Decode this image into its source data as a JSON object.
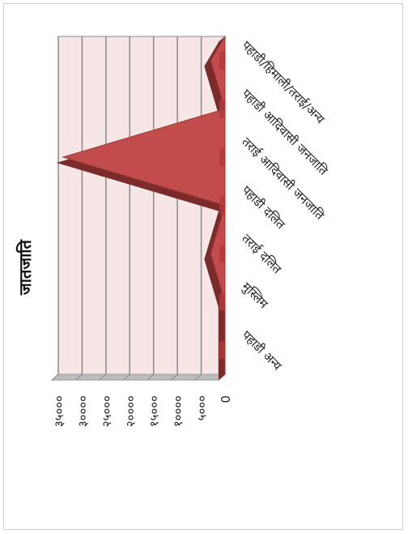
{
  "chart_data": {
    "type": "area",
    "title": "जातजाति",
    "categories": [
      "पहाडी/हिमाली/तराई/अन्य",
      "पहाडी आदिवासी जनजाति",
      "तराई आदिवासी जनजाति",
      "पहाडी दलित",
      "तराई दलित",
      "मुस्लिम",
      "पहाडी अन्य"
    ],
    "values": [
      3000,
      0,
      34000,
      0,
      3000,
      0,
      0
    ],
    "ylim": [
      0,
      35000
    ],
    "yticks": [
      "0",
      "५०००",
      "१००००",
      "१५०००",
      "२००००",
      "२५०००",
      "३००००",
      "३५०००"
    ],
    "grid": true,
    "colors": {
      "wall": "#f6e6e6",
      "grid": "#8a8a8a",
      "floor": "#bdbdbd",
      "area": "#c24b4b",
      "area_dark": "#7d2a2a",
      "marker": "#b03a3a"
    }
  }
}
